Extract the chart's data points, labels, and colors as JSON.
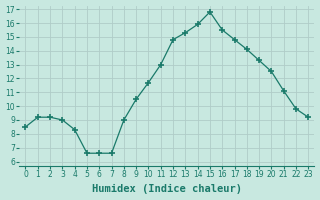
{
  "xlabel": "Humidex (Indice chaleur)",
  "x": [
    0,
    1,
    2,
    3,
    4,
    5,
    6,
    7,
    8,
    9,
    10,
    11,
    12,
    13,
    14,
    15,
    16,
    17,
    18,
    19,
    20,
    21,
    22,
    23
  ],
  "y": [
    8.5,
    9.2,
    9.2,
    9.0,
    8.3,
    6.6,
    6.6,
    6.6,
    9.0,
    10.5,
    11.7,
    13.0,
    14.8,
    15.3,
    15.9,
    16.8,
    15.5,
    14.8,
    14.1,
    13.3,
    12.5,
    11.1,
    9.8,
    9.2
  ],
  "line_color": "#1a7a6a",
  "marker": "+",
  "marker_size": 4,
  "marker_linewidth": 1.2,
  "bg_color": "#c8e8e0",
  "grid_color": "#b0ccc8",
  "ylim_min": 6,
  "ylim_max": 17,
  "xlim_min": -0.5,
  "xlim_max": 23.5,
  "yticks": [
    6,
    7,
    8,
    9,
    10,
    11,
    12,
    13,
    14,
    15,
    16,
    17
  ],
  "xticks": [
    0,
    1,
    2,
    3,
    4,
    5,
    6,
    7,
    8,
    9,
    10,
    11,
    12,
    13,
    14,
    15,
    16,
    17,
    18,
    19,
    20,
    21,
    22,
    23
  ],
  "tick_label_fontsize": 5.5,
  "xlabel_fontsize": 7.5
}
